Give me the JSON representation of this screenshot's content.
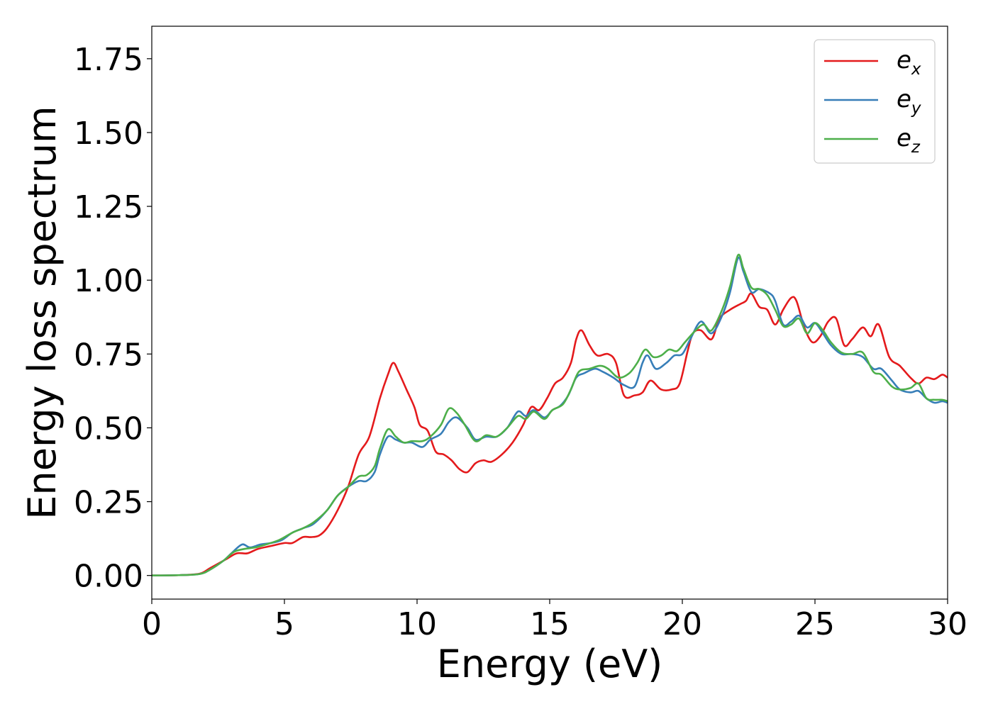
{
  "chart_data": {
    "type": "line",
    "title": "",
    "xlabel": "Energy (eV)",
    "ylabel": "Energy loss spectrum",
    "xlim": [
      0,
      30
    ],
    "ylim": [
      -0.08,
      1.86
    ],
    "xticks": [
      0,
      5,
      10,
      15,
      20,
      25,
      30
    ],
    "xtick_labels": [
      "0",
      "5",
      "10",
      "15",
      "20",
      "25",
      "30"
    ],
    "yticks": [
      0.0,
      0.25,
      0.5,
      0.75,
      1.0,
      1.25,
      1.5,
      1.75
    ],
    "ytick_labels": [
      "0.00",
      "0.25",
      "0.50",
      "0.75",
      "1.00",
      "1.25",
      "1.50",
      "1.75"
    ],
    "grid": false,
    "legend_position": "top-right",
    "series": [
      {
        "name": "e",
        "subscript": "x",
        "color": "#e41a1c",
        "points": [
          [
            0,
            0
          ],
          [
            1,
            0.001
          ],
          [
            1.8,
            0.006
          ],
          [
            2.2,
            0.025
          ],
          [
            2.8,
            0.055
          ],
          [
            3.2,
            0.075
          ],
          [
            3.6,
            0.075
          ],
          [
            4,
            0.09
          ],
          [
            4.5,
            0.1
          ],
          [
            5,
            0.11
          ],
          [
            5.3,
            0.11
          ],
          [
            5.7,
            0.13
          ],
          [
            6,
            0.13
          ],
          [
            6.3,
            0.135
          ],
          [
            6.6,
            0.16
          ],
          [
            7,
            0.22
          ],
          [
            7.4,
            0.3
          ],
          [
            7.8,
            0.41
          ],
          [
            8.2,
            0.47
          ],
          [
            8.6,
            0.6
          ],
          [
            8.9,
            0.68
          ],
          [
            9.1,
            0.72
          ],
          [
            9.3,
            0.69
          ],
          [
            9.6,
            0.63
          ],
          [
            9.9,
            0.57
          ],
          [
            10.1,
            0.51
          ],
          [
            10.4,
            0.49
          ],
          [
            10.7,
            0.42
          ],
          [
            11,
            0.41
          ],
          [
            11.3,
            0.39
          ],
          [
            11.6,
            0.36
          ],
          [
            11.9,
            0.35
          ],
          [
            12.2,
            0.38
          ],
          [
            12.5,
            0.39
          ],
          [
            12.8,
            0.385
          ],
          [
            13.2,
            0.41
          ],
          [
            13.6,
            0.45
          ],
          [
            14,
            0.51
          ],
          [
            14.3,
            0.57
          ],
          [
            14.6,
            0.56
          ],
          [
            14.9,
            0.6
          ],
          [
            15.2,
            0.65
          ],
          [
            15.5,
            0.67
          ],
          [
            15.8,
            0.72
          ],
          [
            16,
            0.8
          ],
          [
            16.2,
            0.83
          ],
          [
            16.5,
            0.78
          ],
          [
            16.8,
            0.745
          ],
          [
            17.2,
            0.75
          ],
          [
            17.5,
            0.72
          ],
          [
            17.8,
            0.61
          ],
          [
            18.2,
            0.61
          ],
          [
            18.5,
            0.62
          ],
          [
            18.8,
            0.66
          ],
          [
            19.2,
            0.63
          ],
          [
            19.6,
            0.63
          ],
          [
            19.9,
            0.65
          ],
          [
            20.2,
            0.76
          ],
          [
            20.4,
            0.82
          ],
          [
            20.7,
            0.83
          ],
          [
            21.1,
            0.8
          ],
          [
            21.4,
            0.87
          ],
          [
            21.8,
            0.9
          ],
          [
            22.2,
            0.92
          ],
          [
            22.4,
            0.93
          ],
          [
            22.6,
            0.955
          ],
          [
            22.9,
            0.91
          ],
          [
            23.2,
            0.9
          ],
          [
            23.5,
            0.85
          ],
          [
            23.8,
            0.9
          ],
          [
            24.1,
            0.94
          ],
          [
            24.3,
            0.93
          ],
          [
            24.6,
            0.84
          ],
          [
            24.9,
            0.79
          ],
          [
            25.2,
            0.81
          ],
          [
            25.5,
            0.86
          ],
          [
            25.8,
            0.87
          ],
          [
            26.1,
            0.78
          ],
          [
            26.4,
            0.8
          ],
          [
            26.8,
            0.84
          ],
          [
            27.1,
            0.81
          ],
          [
            27.4,
            0.85
          ],
          [
            27.8,
            0.74
          ],
          [
            28.2,
            0.71
          ],
          [
            28.6,
            0.67
          ],
          [
            28.9,
            0.65
          ],
          [
            29.2,
            0.67
          ],
          [
            29.5,
            0.665
          ],
          [
            29.8,
            0.68
          ],
          [
            30,
            0.67
          ]
        ]
      },
      {
        "name": "e",
        "subscript": "y",
        "color": "#377eb8",
        "points": [
          [
            0,
            0
          ],
          [
            1,
            0.001
          ],
          [
            1.8,
            0.005
          ],
          [
            2.2,
            0.02
          ],
          [
            2.7,
            0.05
          ],
          [
            3,
            0.075
          ],
          [
            3.4,
            0.105
          ],
          [
            3.7,
            0.095
          ],
          [
            4.1,
            0.105
          ],
          [
            4.5,
            0.11
          ],
          [
            4.9,
            0.12
          ],
          [
            5.3,
            0.145
          ],
          [
            5.7,
            0.16
          ],
          [
            6.1,
            0.175
          ],
          [
            6.6,
            0.22
          ],
          [
            7,
            0.27
          ],
          [
            7.4,
            0.3
          ],
          [
            7.8,
            0.32
          ],
          [
            8.1,
            0.32
          ],
          [
            8.4,
            0.35
          ],
          [
            8.6,
            0.41
          ],
          [
            8.9,
            0.47
          ],
          [
            9.2,
            0.46
          ],
          [
            9.5,
            0.45
          ],
          [
            9.8,
            0.45
          ],
          [
            10.2,
            0.435
          ],
          [
            10.5,
            0.46
          ],
          [
            10.9,
            0.48
          ],
          [
            11.2,
            0.52
          ],
          [
            11.5,
            0.535
          ],
          [
            11.9,
            0.5
          ],
          [
            12.2,
            0.46
          ],
          [
            12.6,
            0.47
          ],
          [
            13,
            0.47
          ],
          [
            13.4,
            0.5
          ],
          [
            13.8,
            0.555
          ],
          [
            14.1,
            0.54
          ],
          [
            14.4,
            0.56
          ],
          [
            14.8,
            0.535
          ],
          [
            15.1,
            0.56
          ],
          [
            15.4,
            0.575
          ],
          [
            15.7,
            0.61
          ],
          [
            16,
            0.67
          ],
          [
            16.3,
            0.685
          ],
          [
            16.7,
            0.7
          ],
          [
            17,
            0.69
          ],
          [
            17.4,
            0.67
          ],
          [
            17.8,
            0.645
          ],
          [
            18.2,
            0.64
          ],
          [
            18.5,
            0.72
          ],
          [
            18.7,
            0.745
          ],
          [
            19,
            0.7
          ],
          [
            19.4,
            0.72
          ],
          [
            19.7,
            0.745
          ],
          [
            20,
            0.75
          ],
          [
            20.3,
            0.8
          ],
          [
            20.7,
            0.86
          ],
          [
            21.1,
            0.82
          ],
          [
            21.5,
            0.88
          ],
          [
            21.8,
            0.96
          ],
          [
            22.1,
            1.075
          ],
          [
            22.3,
            1.03
          ],
          [
            22.6,
            0.96
          ],
          [
            22.9,
            0.97
          ],
          [
            23.3,
            0.955
          ],
          [
            23.5,
            0.93
          ],
          [
            23.8,
            0.85
          ],
          [
            24.1,
            0.86
          ],
          [
            24.4,
            0.88
          ],
          [
            24.7,
            0.84
          ],
          [
            25,
            0.855
          ],
          [
            25.3,
            0.82
          ],
          [
            25.6,
            0.78
          ],
          [
            26,
            0.75
          ],
          [
            26.4,
            0.75
          ],
          [
            26.8,
            0.74
          ],
          [
            27.2,
            0.7
          ],
          [
            27.5,
            0.7
          ],
          [
            27.9,
            0.66
          ],
          [
            28.2,
            0.63
          ],
          [
            28.6,
            0.62
          ],
          [
            28.9,
            0.625
          ],
          [
            29.2,
            0.6
          ],
          [
            29.5,
            0.585
          ],
          [
            29.8,
            0.59
          ],
          [
            30,
            0.585
          ]
        ]
      },
      {
        "name": "e",
        "subscript": "z",
        "color": "#4daf4a",
        "points": [
          [
            0,
            0
          ],
          [
            1,
            0.001
          ],
          [
            1.8,
            0.005
          ],
          [
            2.2,
            0.02
          ],
          [
            2.7,
            0.05
          ],
          [
            3.1,
            0.08
          ],
          [
            3.5,
            0.09
          ],
          [
            3.9,
            0.095
          ],
          [
            4.3,
            0.105
          ],
          [
            4.8,
            0.12
          ],
          [
            5.3,
            0.145
          ],
          [
            5.7,
            0.16
          ],
          [
            6.1,
            0.18
          ],
          [
            6.6,
            0.22
          ],
          [
            7,
            0.27
          ],
          [
            7.4,
            0.3
          ],
          [
            7.8,
            0.335
          ],
          [
            8.1,
            0.34
          ],
          [
            8.4,
            0.37
          ],
          [
            8.6,
            0.43
          ],
          [
            8.9,
            0.495
          ],
          [
            9.2,
            0.47
          ],
          [
            9.5,
            0.45
          ],
          [
            9.8,
            0.455
          ],
          [
            10.2,
            0.455
          ],
          [
            10.5,
            0.47
          ],
          [
            10.9,
            0.51
          ],
          [
            11.2,
            0.565
          ],
          [
            11.5,
            0.55
          ],
          [
            11.8,
            0.51
          ],
          [
            12.2,
            0.455
          ],
          [
            12.6,
            0.475
          ],
          [
            13,
            0.47
          ],
          [
            13.4,
            0.5
          ],
          [
            13.8,
            0.54
          ],
          [
            14.1,
            0.53
          ],
          [
            14.4,
            0.555
          ],
          [
            14.8,
            0.53
          ],
          [
            15.1,
            0.56
          ],
          [
            15.5,
            0.58
          ],
          [
            15.8,
            0.63
          ],
          [
            16.1,
            0.69
          ],
          [
            16.5,
            0.7
          ],
          [
            16.9,
            0.71
          ],
          [
            17.2,
            0.7
          ],
          [
            17.6,
            0.67
          ],
          [
            18,
            0.685
          ],
          [
            18.3,
            0.72
          ],
          [
            18.6,
            0.765
          ],
          [
            18.9,
            0.74
          ],
          [
            19.2,
            0.745
          ],
          [
            19.5,
            0.765
          ],
          [
            19.8,
            0.76
          ],
          [
            20.1,
            0.79
          ],
          [
            20.5,
            0.83
          ],
          [
            20.8,
            0.85
          ],
          [
            21.1,
            0.83
          ],
          [
            21.5,
            0.9
          ],
          [
            21.8,
            0.98
          ],
          [
            22.1,
            1.085
          ],
          [
            22.3,
            1.04
          ],
          [
            22.6,
            0.975
          ],
          [
            22.9,
            0.97
          ],
          [
            23.2,
            0.95
          ],
          [
            23.5,
            0.9
          ],
          [
            23.8,
            0.845
          ],
          [
            24.1,
            0.85
          ],
          [
            24.4,
            0.87
          ],
          [
            24.7,
            0.82
          ],
          [
            25,
            0.855
          ],
          [
            25.3,
            0.83
          ],
          [
            25.6,
            0.79
          ],
          [
            26,
            0.755
          ],
          [
            26.4,
            0.75
          ],
          [
            26.8,
            0.755
          ],
          [
            27.2,
            0.69
          ],
          [
            27.5,
            0.68
          ],
          [
            27.9,
            0.64
          ],
          [
            28.2,
            0.63
          ],
          [
            28.6,
            0.635
          ],
          [
            28.9,
            0.65
          ],
          [
            29.2,
            0.6
          ],
          [
            29.5,
            0.595
          ],
          [
            29.8,
            0.595
          ],
          [
            30,
            0.59
          ]
        ]
      }
    ]
  }
}
